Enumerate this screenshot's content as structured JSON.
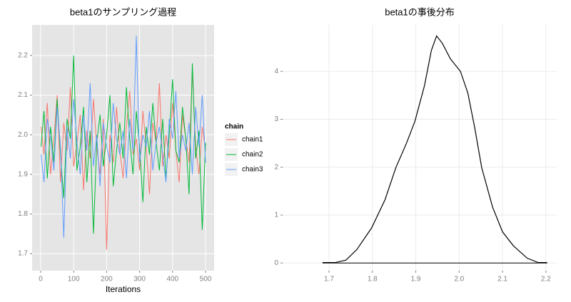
{
  "chart_data": [
    {
      "type": "line",
      "title": "beta1のサンプリング過程",
      "x_label": "Iterations",
      "legend_title": "chain",
      "grid": true,
      "panel_color": "#e5e5e5",
      "grid_color": "#ffffff",
      "x": [
        1,
        10,
        20,
        30,
        40,
        50,
        60,
        70,
        80,
        90,
        100,
        110,
        120,
        130,
        140,
        150,
        160,
        170,
        180,
        190,
        200,
        210,
        220,
        230,
        240,
        250,
        260,
        270,
        280,
        290,
        300,
        310,
        320,
        330,
        340,
        350,
        360,
        370,
        380,
        390,
        400,
        410,
        420,
        430,
        440,
        450,
        460,
        470,
        480,
        490,
        500
      ],
      "series": [
        {
          "name": "chain1",
          "color": "#F8766D",
          "values": [
            2.02,
            1.95,
            2.08,
            1.9,
            1.99,
            2.1,
            1.88,
            2.03,
            1.96,
            2.12,
            1.92,
            1.98,
            2.05,
            1.86,
            2.01,
            1.94,
            2.09,
            1.97,
            1.9,
            2.04,
            1.71,
            2.0,
            1.93,
            2.07,
            1.96,
            1.89,
            2.02,
            2.11,
            1.95,
            1.99,
            1.91,
            2.06,
            1.97,
            1.85,
            2.03,
            1.98,
            2.13,
            1.92,
            2.0,
            1.94,
            2.08,
            1.96,
            1.88,
            2.05,
            1.99,
            1.93,
            2.16,
            1.97,
            1.9,
            2.02,
            1.96
          ]
        },
        {
          "name": "chain2",
          "color": "#00BA38",
          "values": [
            1.97,
            2.06,
            1.89,
            2.02,
            1.93,
            2.09,
            1.95,
            1.84,
            2.04,
            1.99,
            2.2,
            1.91,
            1.97,
            2.07,
            1.88,
            2.01,
            1.75,
            1.98,
            2.05,
            1.92,
            2.0,
            2.1,
            1.87,
            1.96,
            2.03,
            1.94,
            2.12,
            1.99,
            1.9,
            2.06,
            1.97,
            1.83,
            2.02,
            1.95,
            2.08,
            1.98,
            1.91,
            2.04,
            1.89,
            2.0,
            2.14,
            1.96,
            1.93,
            2.07,
            1.99,
            1.85,
            2.18,
            1.94,
            2.01,
            1.76,
            1.98
          ]
        },
        {
          "name": "chain3",
          "color": "#619CFF",
          "values": [
            1.95,
            1.88,
            2.04,
            1.99,
            1.91,
            2.07,
            1.97,
            1.74,
            2.02,
            1.94,
            2.09,
            1.98,
            1.9,
            2.05,
            1.96,
            2.13,
            1.92,
            2.0,
            1.87,
            2.03,
            1.97,
            1.93,
            2.08,
            1.99,
            1.95,
            2.01,
            1.89,
            2.04,
            1.96,
            2.25,
            1.93,
            2.0,
            1.97,
            2.06,
            1.91,
            1.98,
            2.02,
            1.95,
            1.88,
            2.04,
            1.99,
            2.11,
            1.94,
            2.0,
            1.96,
            2.03,
            1.9,
            2.07,
            1.97,
            2.1,
            1.93
          ]
        }
      ],
      "xlim": [
        -26,
        526
      ],
      "xticks": [
        0,
        100,
        200,
        300,
        400,
        500
      ],
      "ylim": [
        1.657,
        2.277
      ],
      "yticks": [
        1.7,
        1.8,
        1.9,
        {
          "value": 2,
          "label": "2.0"
        },
        2.1,
        2.2
      ]
    },
    {
      "type": "density",
      "title": "beta1の事後分布",
      "grid": true,
      "panel_color": "#ffffff",
      "grid_color": "#ebebeb",
      "color": "#000000",
      "x": [
        1.685,
        1.715,
        1.739,
        1.764,
        1.798,
        1.829,
        1.854,
        1.879,
        1.898,
        1.92,
        1.936,
        1.948,
        1.961,
        1.98,
        2.003,
        2.02,
        2.036,
        2.052,
        2.077,
        2.1,
        2.125,
        2.157,
        2.182,
        2.203
      ],
      "values": [
        0.01,
        0.01,
        0.06,
        0.28,
        0.73,
        1.32,
        1.99,
        2.51,
        2.96,
        3.7,
        4.44,
        4.74,
        4.59,
        4.26,
        4.0,
        3.55,
        2.82,
        1.99,
        1.17,
        0.65,
        0.36,
        0.1,
        0.01,
        0.01
      ],
      "xlim": [
        1.593,
        2.225
      ],
      "xticks": [
        1.7,
        1.8,
        1.9,
        {
          "value": 2,
          "label": "2.0"
        },
        2.1,
        2.2
      ],
      "ylim": [
        -0.16,
        4.97
      ],
      "yticks": [
        0,
        1,
        2,
        3,
        4
      ]
    }
  ]
}
